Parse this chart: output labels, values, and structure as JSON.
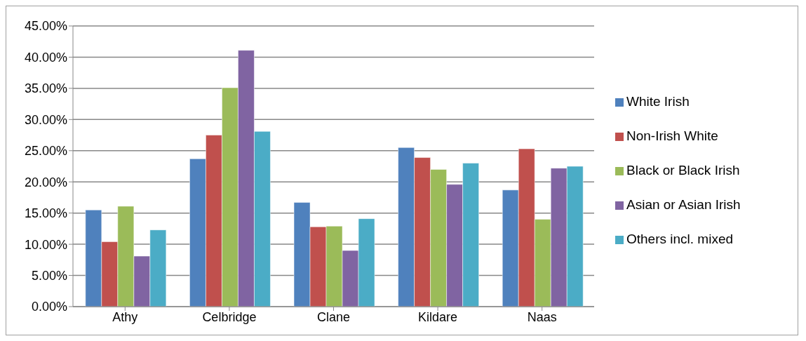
{
  "chart_data": {
    "type": "bar",
    "categories": [
      "Athy",
      "Celbridge",
      "Clane",
      "Kildare",
      "Naas"
    ],
    "series": [
      {
        "name": "White Irish",
        "color": "#4f81bd",
        "values": [
          15.5,
          23.7,
          16.7,
          25.5,
          18.7
        ]
      },
      {
        "name": "Non-Irish White",
        "color": "#c0504d",
        "values": [
          10.4,
          27.5,
          12.8,
          23.9,
          25.3
        ]
      },
      {
        "name": "Black or Black Irish",
        "color": "#9bbb59",
        "values": [
          16.1,
          35.1,
          12.9,
          22.0,
          14.0
        ]
      },
      {
        "name": "Asian or Asian Irish",
        "color": "#8064a2",
        "values": [
          8.1,
          41.1,
          9.0,
          19.6,
          22.2
        ]
      },
      {
        "name": "Others incl. mixed",
        "color": "#4bacc6",
        "values": [
          12.3,
          28.1,
          14.1,
          23.0,
          22.5
        ]
      }
    ],
    "ylim": [
      0,
      45
    ],
    "yticks": [
      {
        "value": 0,
        "label": "0.00%"
      },
      {
        "value": 5,
        "label": "5.00%"
      },
      {
        "value": 10,
        "label": "10.00%"
      },
      {
        "value": 15,
        "label": "15.00%"
      },
      {
        "value": 20,
        "label": "20.00%"
      },
      {
        "value": 25,
        "label": "25.00%"
      },
      {
        "value": 30,
        "label": "30.00%"
      },
      {
        "value": 35,
        "label": "35.00%"
      },
      {
        "value": 40,
        "label": "40.00%"
      },
      {
        "value": 45,
        "label": "45.00%"
      }
    ],
    "grid": "y",
    "legend": "right"
  }
}
